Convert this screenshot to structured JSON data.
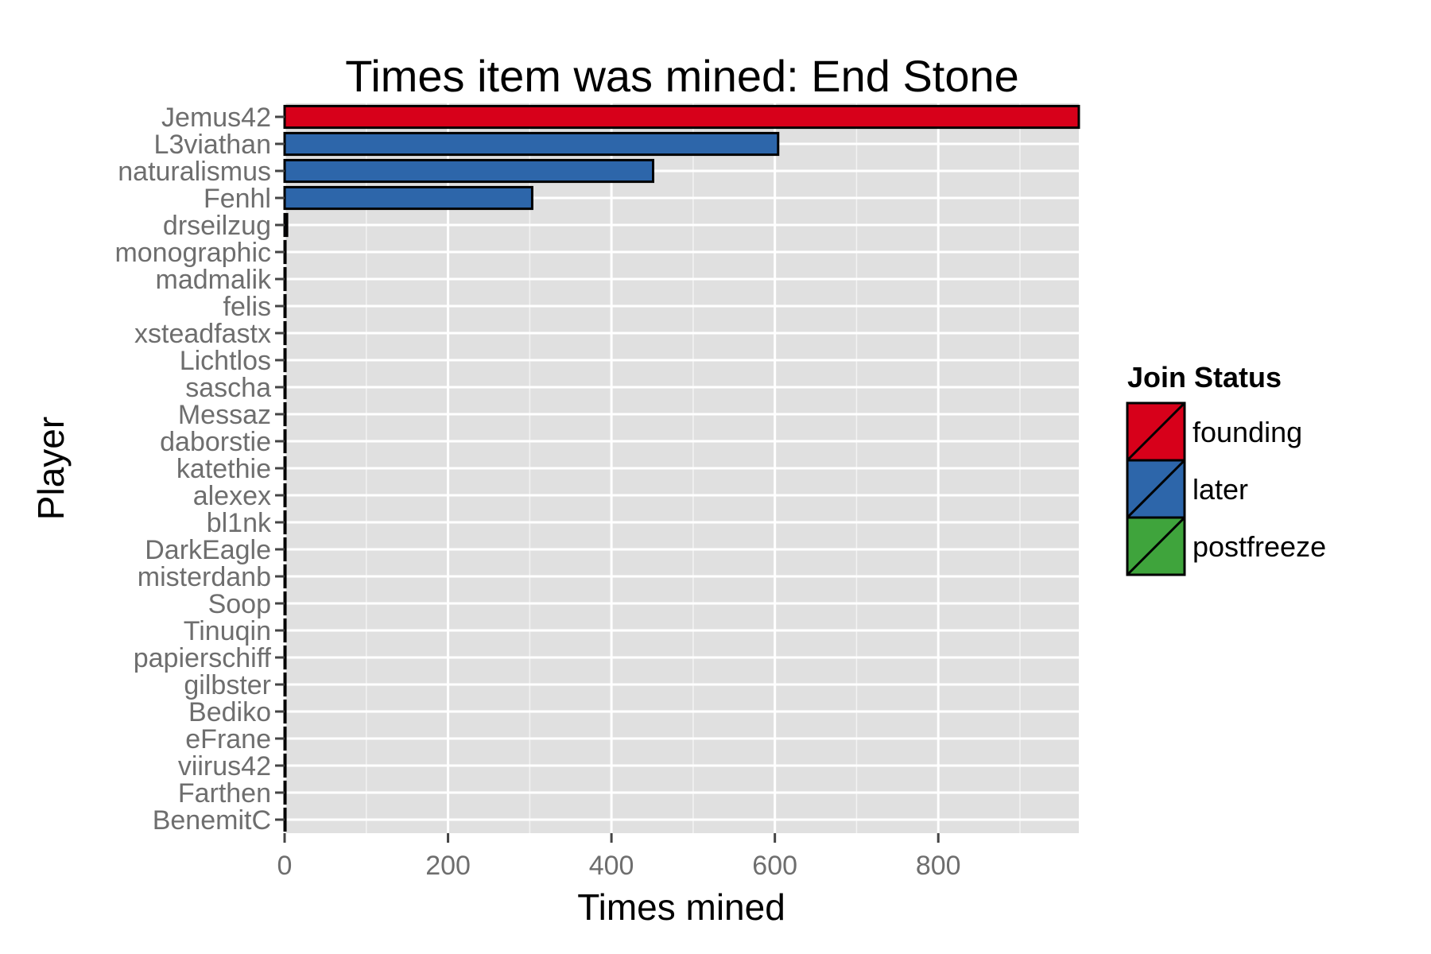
{
  "chart_data": {
    "type": "bar",
    "orientation": "horizontal",
    "title": "Times item was mined: End Stone",
    "xlabel": "Times mined",
    "ylabel": "Player",
    "xlim": [
      0,
      972
    ],
    "xticks": [
      0,
      200,
      400,
      600,
      800
    ],
    "grid": true,
    "legend": {
      "title": "Join Status",
      "position": "right",
      "entries": [
        {
          "label": "founding",
          "color": "#d7001a"
        },
        {
          "label": "later",
          "color": "#2d66aa"
        },
        {
          "label": "postfreeze",
          "color": "#3fa43c"
        }
      ]
    },
    "categories": [
      "Jemus42",
      "L3viathan",
      "naturalismus",
      "Fenhl",
      "drseilzug",
      "monographic",
      "madmalik",
      "felis",
      "xsteadfastx",
      "Lichtlos",
      "sascha",
      "Messaz",
      "daborstie",
      "katethie",
      "alexex",
      "bl1nk",
      "DarkEagle",
      "misterdanb",
      "Soop",
      "Tinuqin",
      "papierschiff",
      "gilbster",
      "Bediko",
      "eFrane",
      "viirus42",
      "Farthen",
      "BenemitC"
    ],
    "values": [
      972,
      604,
      451,
      303,
      3,
      1,
      1,
      1,
      1,
      1,
      1,
      1,
      1,
      1,
      1,
      1,
      1,
      1,
      1,
      1,
      1,
      1,
      1,
      1,
      1,
      1,
      1
    ],
    "status": [
      "founding",
      "later",
      "later",
      "later",
      "later",
      "later",
      "later",
      "later",
      "later",
      "later",
      "later",
      "later",
      "later",
      "later",
      "later",
      "later",
      "later",
      "later",
      "later",
      "later",
      "later",
      "later",
      "later",
      "later",
      "later",
      "later",
      "later"
    ]
  }
}
